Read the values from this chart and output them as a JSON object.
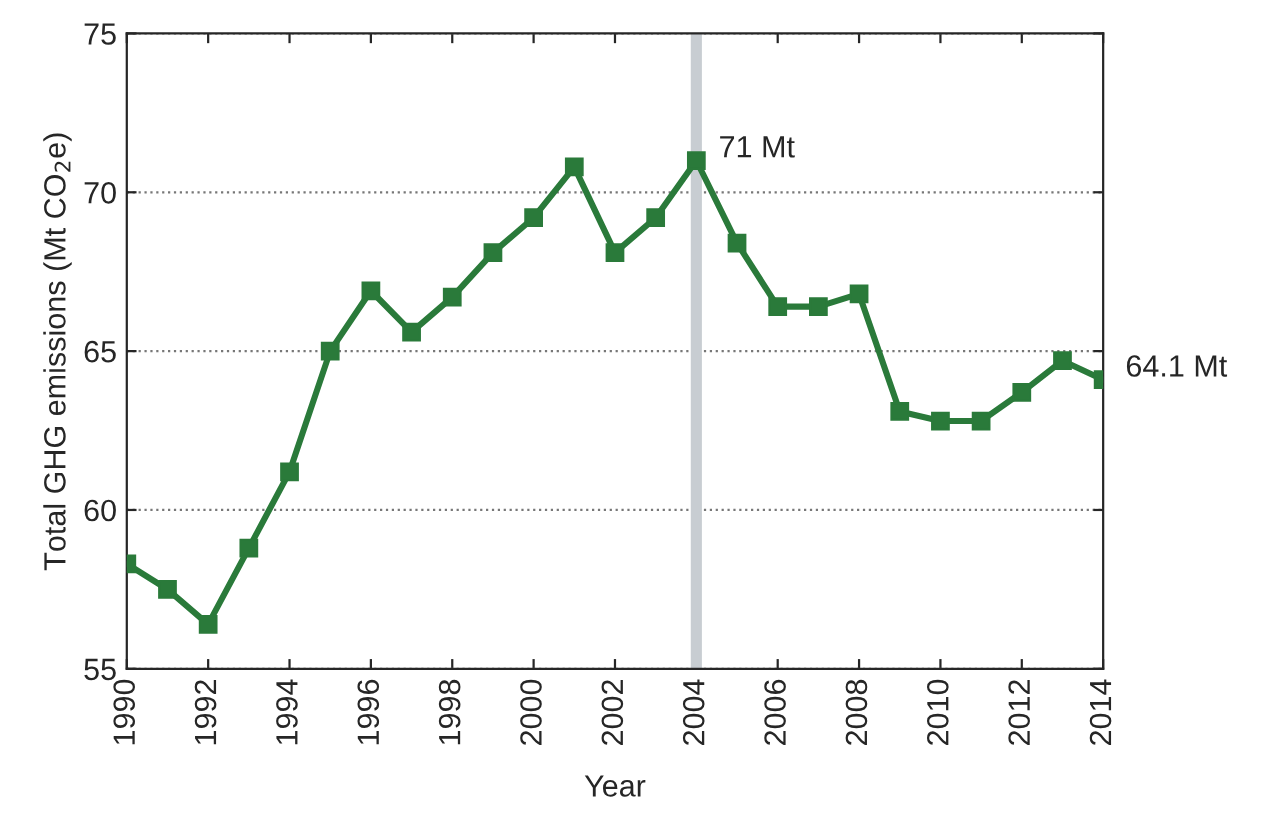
{
  "chart_data": {
    "type": "line",
    "xlabel": "Year",
    "ylabel": "Total GHG emissions (Mt CO$_{2}$e)",
    "x": [
      1990,
      1991,
      1992,
      1993,
      1994,
      1995,
      1996,
      1997,
      1998,
      1999,
      2000,
      2001,
      2002,
      2003,
      2004,
      2005,
      2006,
      2007,
      2008,
      2009,
      2010,
      2011,
      2012,
      2013,
      2014
    ],
    "series": [
      {
        "color": "#2a7a3a",
        "values": [
          58.3,
          57.5,
          56.4,
          58.8,
          61.2,
          65.0,
          66.9,
          65.6,
          66.7,
          68.1,
          69.2,
          70.8,
          68.1,
          69.2,
          71,
          68.4,
          66.4,
          66.4,
          66.8,
          63.1,
          62.8,
          62.8,
          63.7,
          64.7,
          64.1
        ]
      }
    ],
    "xlim": [
      1990,
      2014
    ],
    "xticks": [
      1990,
      1992,
      1994,
      1996,
      1998,
      2000,
      2002,
      2004,
      2006,
      2008,
      2010,
      2012,
      2014
    ],
    "ylim": [
      55,
      75
    ],
    "yticks": [
      55,
      60,
      65,
      70,
      75
    ],
    "grid": "y",
    "marker": "square",
    "line_style": "solid",
    "ref_lines": [
      {
        "axis": "x",
        "value": 2004,
        "color": "#c8cdd2"
      }
    ],
    "annotations": [
      {
        "text": "71 Mt",
        "x": 2004,
        "y": 71
      },
      {
        "text": "64.1 Mt",
        "x": 2014,
        "y": 64.1
      }
    ]
  }
}
